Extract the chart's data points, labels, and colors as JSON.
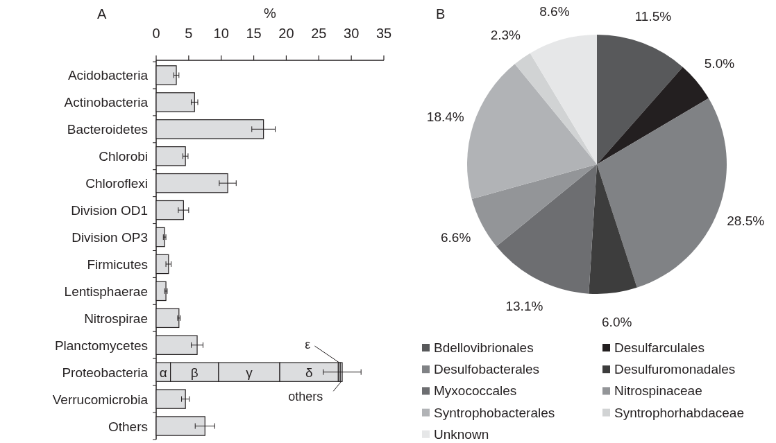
{
  "chart_data": [
    {
      "type": "bar",
      "title": "A",
      "xlabel": "%",
      "orientation": "horizontal",
      "stacked": true,
      "categories": [
        "Acidobacteria",
        "Actinobacteria",
        "Bacteroidetes",
        "Chlorobi",
        "Chloroflexi",
        "Division OD1",
        "Division OP3",
        "Firmicutes",
        "Lentisphaerae",
        "Nitrospirae",
        "Planctomycetes",
        "Proteobacteria",
        "Verrucomicrobia",
        "Others"
      ],
      "xlim": [
        0,
        35
      ],
      "xticks": [
        0,
        5,
        10,
        15,
        20,
        25,
        30,
        35
      ],
      "grid": false,
      "series": [
        {
          "color": "#dcdddf",
          "values": [
            3.1,
            5.9,
            16.5,
            4.5,
            11.0,
            4.2,
            1.3,
            1.9,
            1.5,
            3.5,
            6.3,
            null,
            4.5,
            7.5
          ],
          "errors": [
            0.4,
            0.5,
            1.8,
            0.4,
            1.3,
            0.8,
            0.2,
            0.4,
            0.2,
            0.2,
            0.9,
            null,
            0.6,
            1.5
          ]
        },
        {
          "name": "α",
          "color": "#dcdddf",
          "values": [
            null,
            null,
            null,
            null,
            null,
            null,
            null,
            null,
            null,
            null,
            null,
            2.2,
            null,
            null
          ]
        },
        {
          "name": "β",
          "color": "#dcdddf",
          "values": [
            null,
            null,
            null,
            null,
            null,
            null,
            null,
            null,
            null,
            null,
            null,
            7.4,
            null,
            null
          ]
        },
        {
          "name": "γ",
          "color": "#dcdddf",
          "values": [
            null,
            null,
            null,
            null,
            null,
            null,
            null,
            null,
            null,
            null,
            null,
            9.4,
            null,
            null
          ]
        },
        {
          "name": "δ",
          "color": "#dcdddf",
          "values": [
            null,
            null,
            null,
            null,
            null,
            null,
            null,
            null,
            null,
            null,
            null,
            9.0,
            null,
            null
          ]
        },
        {
          "name": "ε",
          "color": "#dcdddf",
          "values": [
            null,
            null,
            null,
            null,
            null,
            null,
            null,
            null,
            null,
            null,
            null,
            0.3,
            null,
            null
          ]
        },
        {
          "name": "others",
          "color": "#dcdddf",
          "values": [
            null,
            null,
            null,
            null,
            null,
            null,
            null,
            null,
            null,
            null,
            null,
            0.3,
            null,
            null
          ],
          "errors": [
            null,
            null,
            null,
            null,
            null,
            null,
            null,
            null,
            null,
            null,
            null,
            2.9,
            null,
            null
          ]
        }
      ]
    },
    {
      "type": "pie",
      "title": "B",
      "legend": "bottom",
      "categories": [
        "Bdellovibrionales",
        "Desulfarculales",
        "Desulfobacterales",
        "Desulfuromonadales",
        "Myxococcales",
        "Nitrospinaceae",
        "Syntrophobacterales",
        "Syntrophorhabdaceae",
        "Unknown"
      ],
      "values": [
        11.5,
        5.0,
        28.5,
        6.0,
        13.1,
        6.6,
        18.4,
        2.3,
        8.6
      ],
      "value_labels": [
        "11.5%",
        "5.0%",
        "28.5%",
        "6.0%",
        "13.1%",
        "6.6%",
        "18.4%",
        "2.3%",
        "8.6%"
      ],
      "colors": [
        "#58595b",
        "#231f20",
        "#808285",
        "#3d3d3d",
        "#6d6e71",
        "#939598",
        "#b1b3b6",
        "#d1d3d4",
        "#e6e7e8"
      ]
    }
  ]
}
